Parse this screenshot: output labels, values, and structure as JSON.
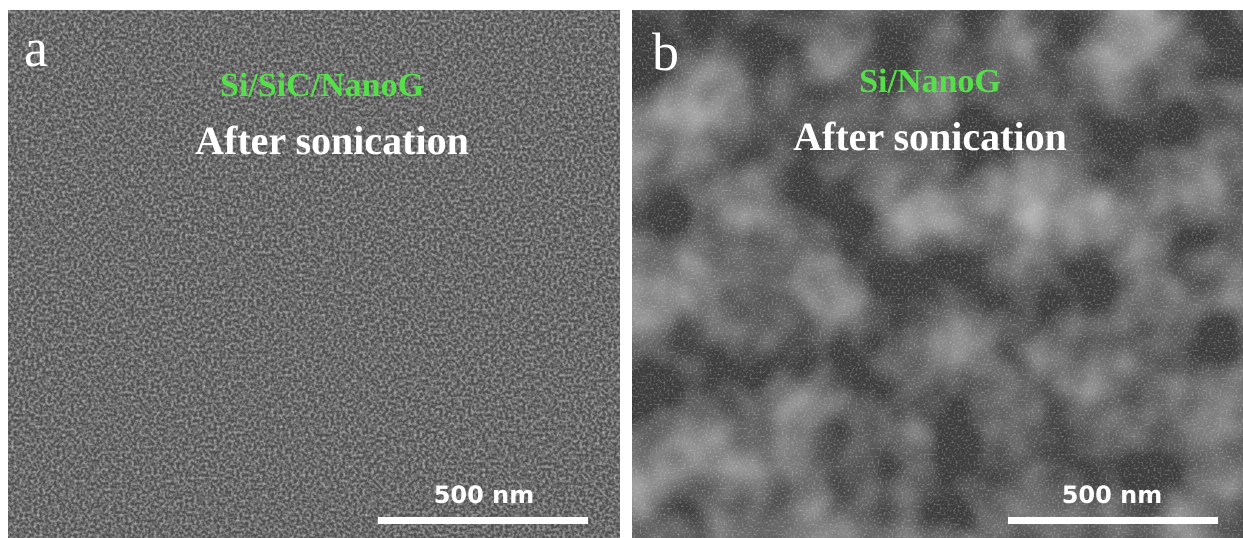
{
  "panels": [
    {
      "label": "a",
      "sample": "Si/SiC/NanoG",
      "condition": "After sonication",
      "scale_bar": "500 nm"
    },
    {
      "label": "b",
      "sample": "Si/NanoG",
      "condition": "After sonication",
      "scale_bar": "500 nm"
    }
  ]
}
